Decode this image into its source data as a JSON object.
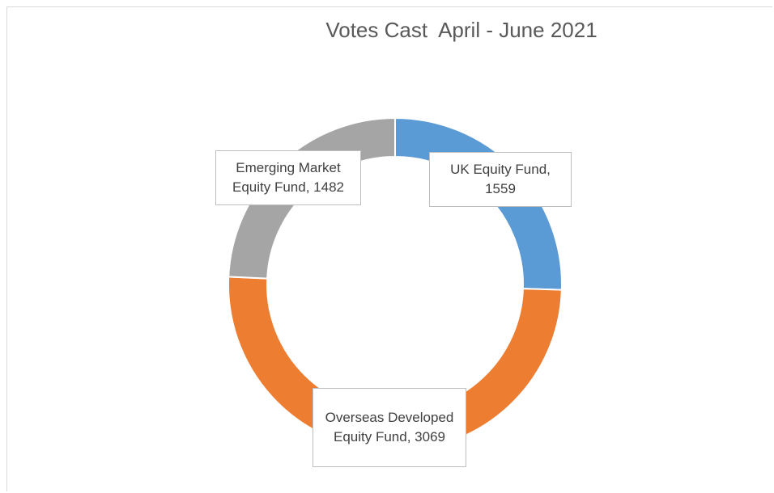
{
  "chart_data": {
    "type": "donut",
    "title": "Votes Cast  April - June 2021",
    "values": [
      1559,
      3069,
      1482
    ],
    "value_labels": [
      "UK Equity Fund, 1559",
      "Overseas Developed Equity Fund, 3069",
      "Emerging Market Equity Fund, 1482"
    ],
    "colors": [
      "#5b9bd5",
      "#ed7d31",
      "#a5a5a5"
    ]
  }
}
